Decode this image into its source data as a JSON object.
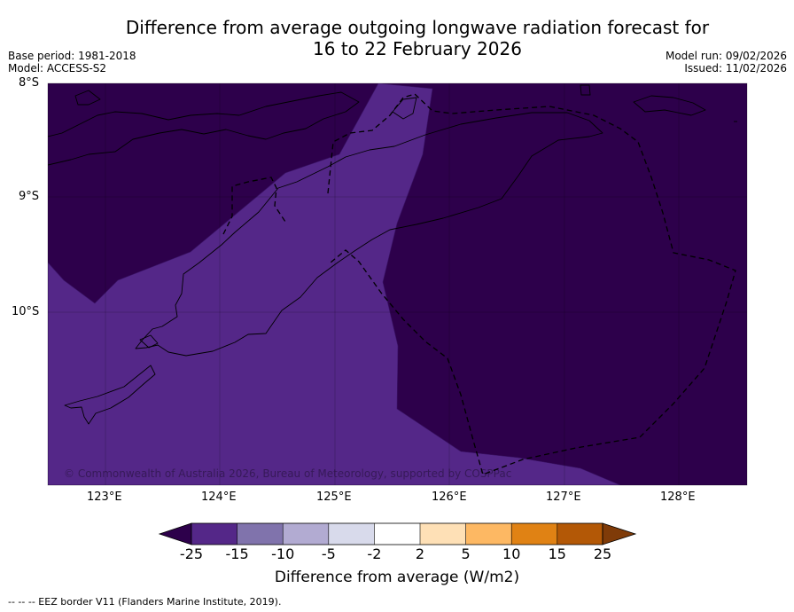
{
  "title": {
    "line1": "Difference from average outgoing longwave radiation forecast for",
    "line2": "16 to 22 February 2026"
  },
  "meta": {
    "base_period": "Base period: 1981-2018",
    "model": "Model: ACCESS-S2",
    "model_run": "Model run: 09/02/2026",
    "issued": "Issued: 11/02/2026"
  },
  "map": {
    "lat_labels": [
      "8°S",
      "9°S",
      "10°S"
    ],
    "lon_labels": [
      "123°E",
      "124°E",
      "125°E",
      "126°E",
      "127°E",
      "128°E"
    ],
    "copyright": "© Commonwealth of Australia 2026, Bureau of Meteorology, supported by COSPPac",
    "region_classes": [
      "-25 or less",
      "-25 to -15"
    ]
  },
  "colorbar": {
    "ticks": [
      "-25",
      "-15",
      "-10",
      "-5",
      "-2",
      "2",
      "5",
      "10",
      "15",
      "25"
    ],
    "label": "Difference from average (W/m2)",
    "colors": {
      "below_min": "#2d004b",
      "bins": [
        "#542788",
        "#8073ac",
        "#b2abd2",
        "#d8daeb",
        "#ffffff",
        "#fee0b6",
        "#fdb863",
        "#e08214",
        "#b35806"
      ],
      "above_max": "#7f3b08"
    }
  },
  "footer": "--  --  -- EEZ border V11 (Flanders Marine Institute, 2019)."
}
